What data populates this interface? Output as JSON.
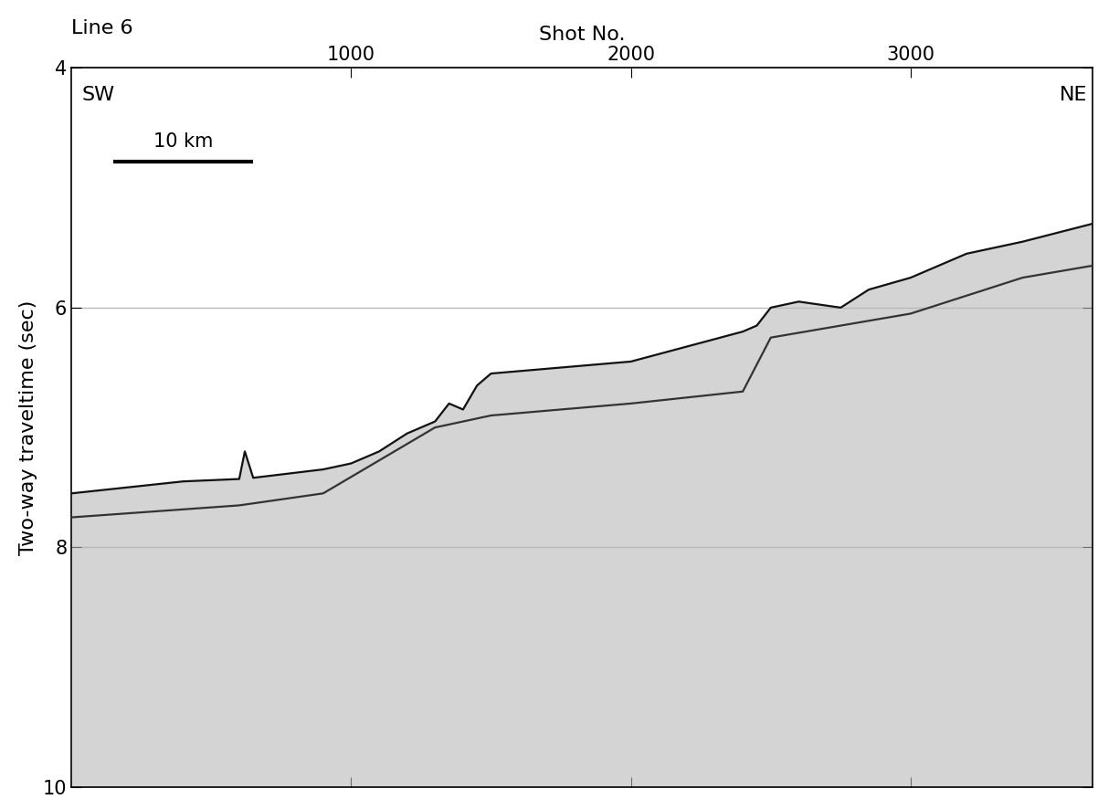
{
  "chart_data": {
    "type": "line",
    "title": "Line 6",
    "x_label": "Shot No.",
    "y_label": "Two-way traveltime (sec)",
    "annotations": [
      "SW",
      "NE"
    ],
    "scale_bar": {
      "label": "10 km",
      "length": 500
    },
    "xlim": [
      0,
      3650
    ],
    "xticks": [
      1000,
      2000,
      3000
    ],
    "ylim": [
      10,
      4
    ],
    "yticks": [
      4,
      6,
      8,
      10
    ],
    "grid": true,
    "tick_labels": true,
    "series": [
      {
        "color": "#111111",
        "line_style": "solid",
        "x": [
          0,
          200,
          400,
          600,
          620,
          650,
          900,
          1000,
          1100,
          1200,
          1300,
          1350,
          1400,
          1450,
          1500,
          2000,
          2400,
          2450,
          2500,
          2600,
          2750,
          2850,
          3000,
          3200,
          3400,
          3650
        ],
        "values": [
          7.55,
          7.5,
          7.45,
          7.43,
          7.2,
          7.42,
          7.35,
          7.3,
          7.2,
          7.05,
          6.95,
          6.8,
          6.85,
          6.65,
          6.55,
          6.45,
          6.2,
          6.15,
          6.0,
          5.95,
          6.0,
          5.85,
          5.75,
          5.55,
          5.45,
          5.3
        ]
      },
      {
        "color": "#333333",
        "line_style": "solid",
        "x": [
          0,
          600,
          900,
          1300,
          1400,
          1500,
          2000,
          2400,
          2500,
          3000,
          3400,
          3650
        ],
        "values": [
          7.75,
          7.65,
          7.55,
          7.0,
          6.95,
          6.9,
          6.8,
          6.7,
          6.25,
          6.05,
          5.75,
          5.65
        ]
      }
    ]
  }
}
